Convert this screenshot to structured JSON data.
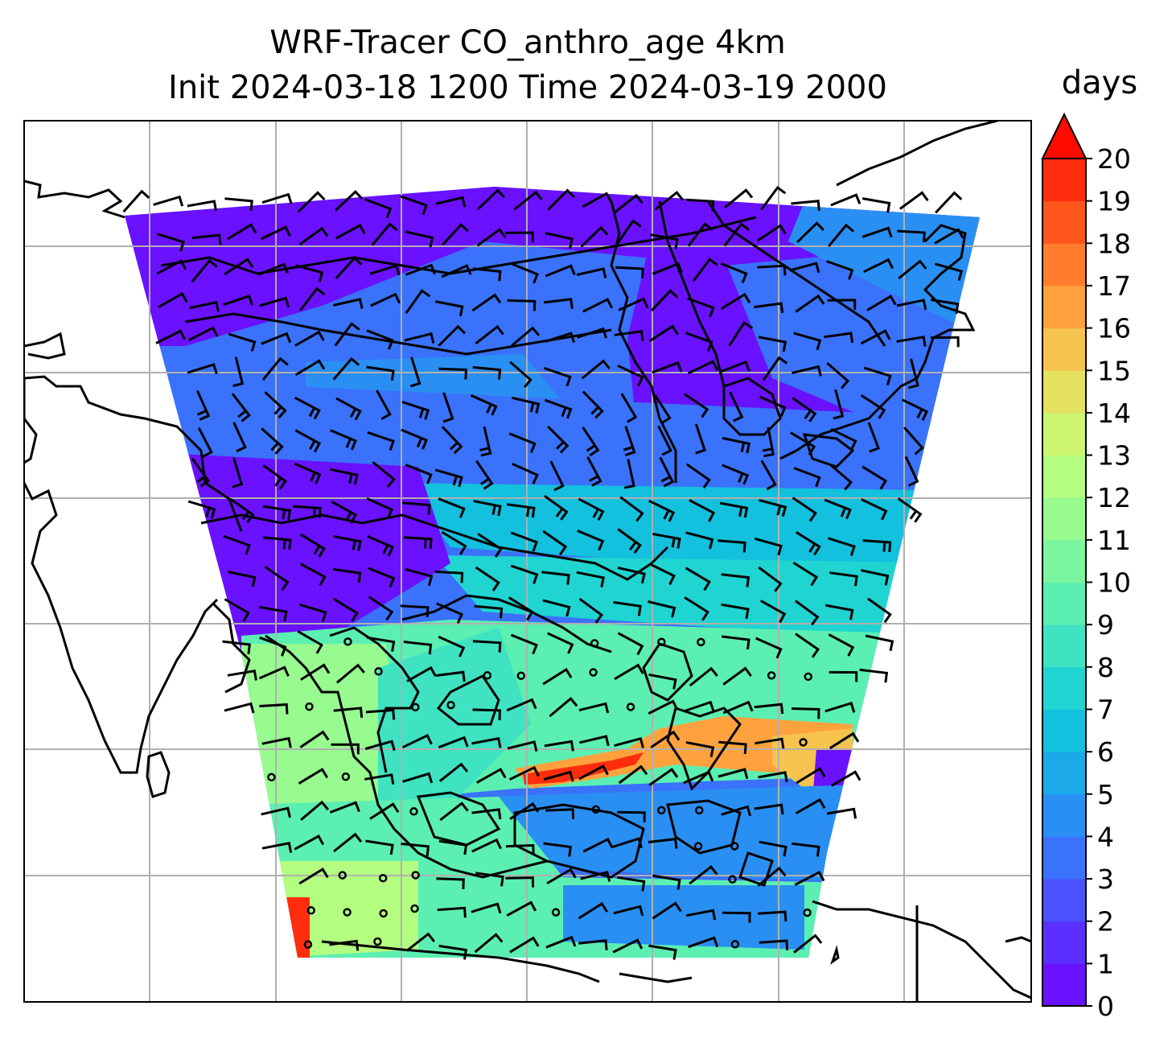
{
  "chart_data": {
    "type": "heatmap",
    "title": "WRF-Tracer CO_anthro_age 4km",
    "subtitle": "Init 2024-03-18 1200 Time 2024-03-19 2000",
    "colorbar": {
      "label": "days",
      "min": 0,
      "max": 20,
      "step": 1,
      "extend": "max",
      "ticks": [
        "0",
        "1",
        "2",
        "3",
        "4",
        "5",
        "6",
        "7",
        "8",
        "9",
        "10",
        "11",
        "12",
        "13",
        "14",
        "15",
        "16",
        "17",
        "18",
        "19",
        "20"
      ],
      "colors": [
        "#6a11ff",
        "#5b2fff",
        "#4a52ff",
        "#3a72fb",
        "#2a8ff3",
        "#1ba9e9",
        "#13c0de",
        "#20d4d1",
        "#3fe3c2",
        "#5cefb2",
        "#7af6a1",
        "#97fb90",
        "#b3fd80",
        "#cdf570",
        "#e4e25f",
        "#f6c44e",
        "#ffa23d",
        "#ff7d2c",
        "#ff561c",
        "#ff2d0d",
        "#ff0b00"
      ]
    },
    "grid": true,
    "features": [
      "coastlines",
      "wind barbs",
      "lat/lon gridlines"
    ]
  }
}
